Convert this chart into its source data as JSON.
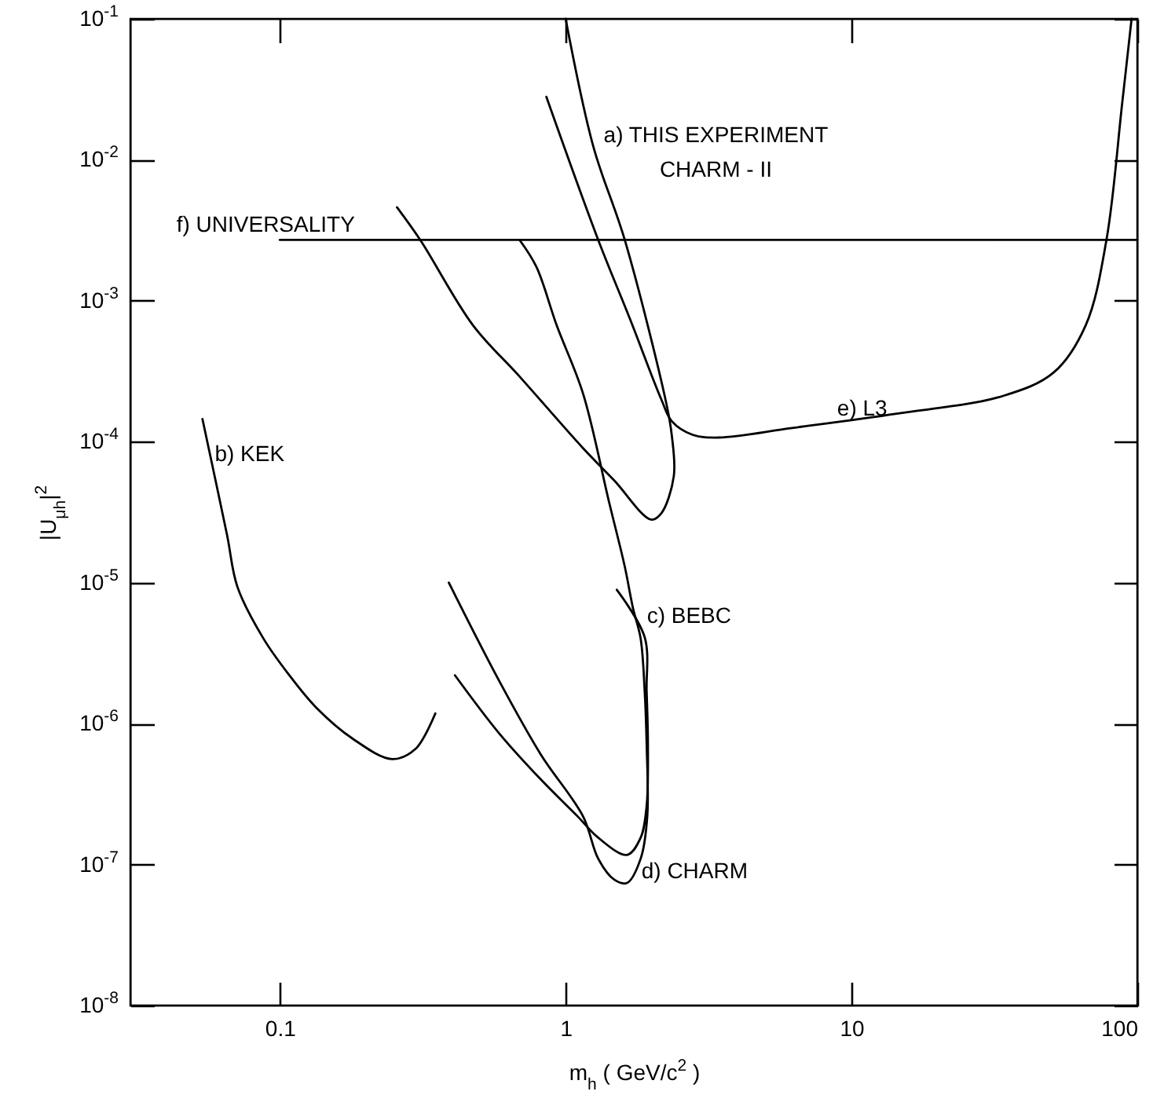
{
  "chart_data": {
    "type": "line",
    "xlabel": "m$_{h}$  ( GeV/c$^{2}$ )",
    "ylabel": "|U$_{μh}$|$^{2}$",
    "log": "xy",
    "xlim": [
      0.03,
      100
    ],
    "ylim": [
      1e-08,
      0.1
    ],
    "xticks": [
      0.1,
      1,
      10,
      100
    ],
    "yticks": [
      {
        "value": 1e-08,
        "label": "10$^{-8}$"
      },
      {
        "value": 1e-07,
        "label": "10$^{-7}$"
      },
      {
        "value": 1e-06,
        "label": "10$^{-6}$"
      },
      {
        "value": 1e-05,
        "label": "10$^{-5}$"
      },
      {
        "value": 0.0001,
        "label": "10$^{-4}$"
      },
      {
        "value": 0.001,
        "label": "10$^{-3}$"
      },
      {
        "value": 0.01,
        "label": "10$^{-2}$"
      },
      {
        "value": 0.1,
        "label": "10$^{-1}$"
      }
    ],
    "series": [
      {
        "name": "a) THIS EXPERIMENT\nCHARM - II",
        "color": "#000000",
        "x": [
          0.257,
          0.31,
          0.474,
          0.69,
          1.15,
          1.48,
          1.99,
          2.16,
          2.39,
          2.35,
          2.25,
          1.61,
          1.25,
          1.0
        ],
        "values": [
          0.0046,
          0.0027,
          0.00067,
          0.00029,
          9e-05,
          5.3e-05,
          2.8e-05,
          3.1e-05,
          5.7e-05,
          0.000112,
          0.000187,
          0.0027,
          0.0124,
          0.1
        ]
      },
      {
        "name": "b) KEK",
        "color": "#000000",
        "x": [
          0.0536,
          0.0653,
          0.0711,
          0.0877,
          0.108,
          0.134,
          0.18,
          0.247,
          0.298,
          0.35
        ],
        "values": [
          0.000145,
          2.2e-05,
          9.3e-06,
          4e-06,
          2.2e-06,
          1.3e-06,
          7.8e-07,
          5.6e-07,
          6.6e-07,
          1.18e-06
        ]
      },
      {
        "name": "c) BEBC",
        "color": "#000000",
        "x": [
          0.41,
          0.586,
          0.82,
          1.1,
          1.3,
          1.64,
          1.83,
          1.92,
          1.94,
          1.92,
          1.89,
          1.51
        ],
        "values": [
          2.2e-06,
          8.5e-07,
          4e-07,
          2.2e-07,
          1.55e-07,
          1.17e-07,
          1.55e-07,
          2.6e-07,
          7.2e-07,
          1.7e-06,
          4.1e-06,
          8.9e-06
        ]
      },
      {
        "name": "d) CHARM",
        "color": "#000000",
        "x": [
          0.39,
          0.586,
          0.82,
          1.15,
          1.3,
          1.48,
          1.64,
          1.83,
          1.93,
          1.92,
          1.89,
          1.83,
          1.72,
          1.61,
          1.42,
          1.15,
          0.93,
          0.79,
          0.69
        ],
        "values": [
          1e-05,
          2e-06,
          6e-07,
          2.2e-07,
          1.1e-07,
          7.8e-08,
          7.4e-08,
          1.1e-07,
          2.2e-07,
          7.2e-07,
          1.7e-06,
          4e-06,
          6.6e-06,
          1.3e-05,
          3.7e-05,
          0.00022,
          0.00067,
          0.00174,
          0.0027
        ]
      },
      {
        "name": "e) L3",
        "color": "#000000",
        "x": [
          0.856,
          1.3,
          1.68,
          2.16,
          2.35,
          2.78,
          3.44,
          6.2,
          14.4,
          33.6,
          51,
          66,
          78,
          88.5,
          95.5
        ],
        "values": [
          0.028,
          0.0027,
          0.00074,
          0.0002,
          0.00014,
          0.000112,
          0.000107,
          0.000125,
          0.000158,
          0.00021,
          0.00031,
          0.00067,
          0.0027,
          0.025,
          0.1
        ]
      },
      {
        "name": "f) UNIVERSALITY",
        "color": "#000000",
        "x": [
          0.1,
          100
        ],
        "values": [
          0.0027,
          0.0027
        ]
      }
    ]
  }
}
